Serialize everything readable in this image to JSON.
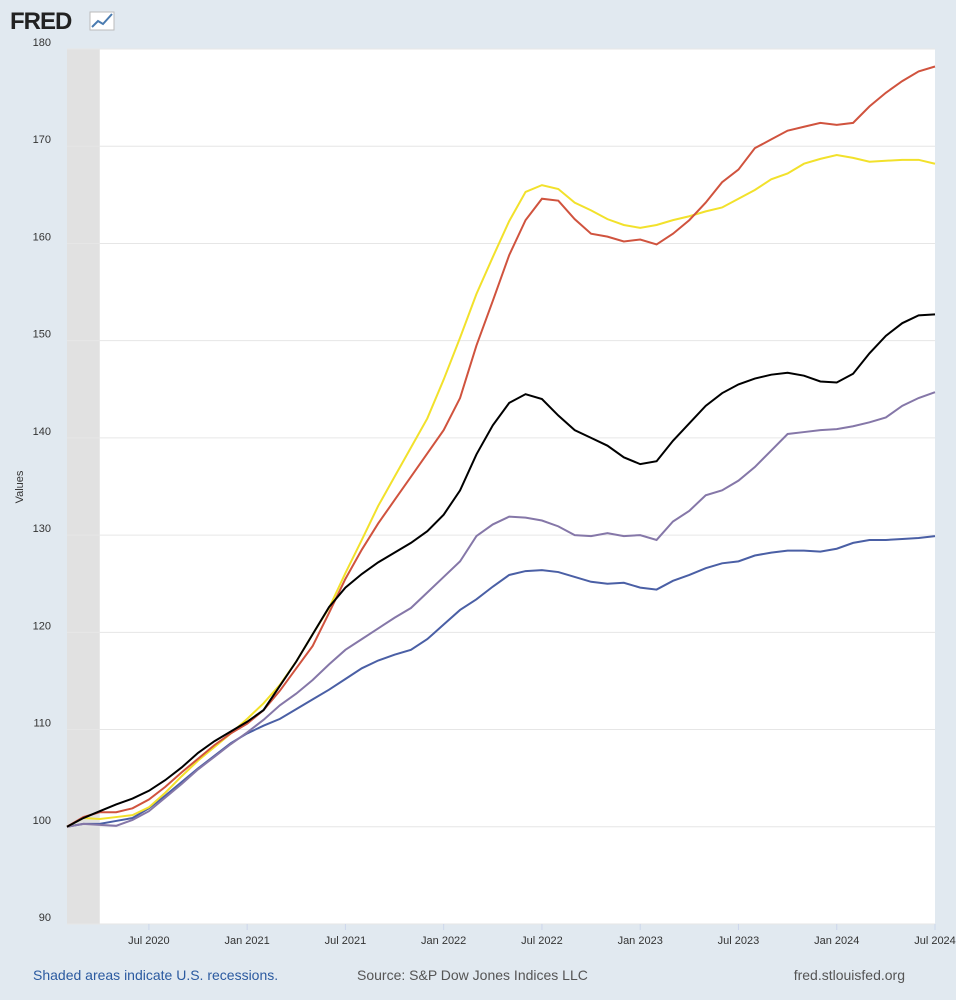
{
  "logo": "FRED",
  "chart_data": {
    "type": "line",
    "ylabel": "Values",
    "x": [
      "2020-02",
      "2020-03",
      "2020-04",
      "2020-05",
      "2020-06",
      "2020-07",
      "2020-08",
      "2020-09",
      "2020-10",
      "2020-11",
      "2020-12",
      "2021-01",
      "2021-02",
      "2021-03",
      "2021-04",
      "2021-05",
      "2021-06",
      "2021-07",
      "2021-08",
      "2021-09",
      "2021-10",
      "2021-11",
      "2021-12",
      "2022-01",
      "2022-02",
      "2022-03",
      "2022-04",
      "2022-05",
      "2022-06",
      "2022-07",
      "2022-08",
      "2022-09",
      "2022-10",
      "2022-11",
      "2022-12",
      "2023-01",
      "2023-02",
      "2023-03",
      "2023-04",
      "2023-05",
      "2023-06",
      "2023-07",
      "2023-08",
      "2023-09",
      "2023-10",
      "2023-11",
      "2023-12",
      "2024-01",
      "2024-02",
      "2024-03",
      "2024-04",
      "2024-05",
      "2024-06",
      "2024-07"
    ],
    "xlim": [
      "2020-02",
      "2024-07"
    ],
    "xticks": [
      {
        "value": "2020-07",
        "label": "Jul 2020"
      },
      {
        "value": "2021-01",
        "label": "Jan 2021"
      },
      {
        "value": "2021-07",
        "label": "Jul 2021"
      },
      {
        "value": "2022-01",
        "label": "Jan 2022"
      },
      {
        "value": "2022-07",
        "label": "Jul 2022"
      },
      {
        "value": "2023-01",
        "label": "Jan 2023"
      },
      {
        "value": "2023-07",
        "label": "Jul 2023"
      },
      {
        "value": "2024-01",
        "label": "Jan 2024"
      },
      {
        "value": "2024-07",
        "label": "Jul 2024"
      }
    ],
    "ylim": [
      90,
      180
    ],
    "yticks": [
      90,
      100,
      110,
      120,
      130,
      140,
      150,
      160,
      170,
      180
    ],
    "grid": true,
    "recessions": [
      [
        "2020-02",
        "2020-04"
      ]
    ],
    "series": [
      {
        "color": "#4a5fa5",
        "values": [
          100,
          100.3,
          100.3,
          100.6,
          100.9,
          101.9,
          103.2,
          104.6,
          106.0,
          107.3,
          108.6,
          109.6,
          110.4,
          111.1,
          112.1,
          113.1,
          114.1,
          115.2,
          116.3,
          117.1,
          117.7,
          118.2,
          119.3,
          120.8,
          122.3,
          123.4,
          124.7,
          125.9,
          126.3,
          126.4,
          126.2,
          125.7,
          125.2,
          125.0,
          125.1,
          124.6,
          124.4,
          125.3,
          125.9,
          126.6,
          127.1,
          127.3,
          127.9,
          128.2,
          128.4,
          128.4,
          128.3,
          128.6,
          129.2,
          129.5,
          129.5,
          129.6,
          129.7,
          129.9
        ]
      },
      {
        "color": "#8577a8",
        "values": [
          100,
          100.3,
          100.2,
          100.1,
          100.7,
          101.6,
          103.0,
          104.4,
          105.9,
          107.2,
          108.5,
          109.7,
          111.0,
          112.5,
          113.7,
          115.1,
          116.7,
          118.2,
          119.3,
          120.4,
          121.5,
          122.5,
          124.1,
          125.7,
          127.3,
          129.9,
          131.1,
          131.9,
          131.8,
          131.5,
          130.9,
          130.0,
          129.9,
          130.2,
          129.9,
          130.0,
          129.5,
          131.4,
          132.5,
          134.1,
          134.6,
          135.6,
          137.0,
          138.7,
          140.4,
          140.6,
          140.8,
          140.9,
          141.2,
          141.6,
          142.1,
          143.3,
          144.1,
          144.7
        ]
      },
      {
        "color": "#f2e12b",
        "values": [
          100,
          100.9,
          100.8,
          101.0,
          101.2,
          102.0,
          103.5,
          105.2,
          106.8,
          108.2,
          109.6,
          111.1,
          112.7,
          114.6,
          117.0,
          119.8,
          122.5,
          126.1,
          129.5,
          133.0,
          136.0,
          139.0,
          142.0,
          146.0,
          150.3,
          154.8,
          158.6,
          162.3,
          165.3,
          166.0,
          165.6,
          164.2,
          163.4,
          162.5,
          161.9,
          161.6,
          161.9,
          162.4,
          162.8,
          163.3,
          163.7,
          164.6,
          165.5,
          166.6,
          167.2,
          168.2,
          168.7,
          169.1,
          168.8,
          168.4,
          168.5,
          168.6,
          168.6,
          168.2
        ]
      },
      {
        "color": "#d0533e",
        "values": [
          100,
          101.0,
          101.5,
          101.5,
          101.9,
          102.8,
          104.1,
          105.6,
          107.0,
          108.4,
          109.6,
          110.6,
          112.0,
          114.0,
          116.3,
          118.6,
          122.0,
          125.5,
          128.5,
          131.2,
          133.6,
          136.0,
          138.4,
          140.8,
          144.1,
          149.5,
          154.1,
          158.8,
          162.4,
          164.6,
          164.4,
          162.5,
          161.0,
          160.7,
          160.2,
          160.4,
          159.9,
          161.0,
          162.4,
          164.2,
          166.3,
          167.6,
          169.8,
          170.7,
          171.6,
          172.0,
          172.4,
          172.2,
          172.4,
          174.1,
          175.5,
          176.7,
          177.7,
          178.2
        ]
      },
      {
        "color": "#000000",
        "values": [
          100,
          100.9,
          101.6,
          102.3,
          102.9,
          103.7,
          104.8,
          106.1,
          107.6,
          108.8,
          109.8,
          110.8,
          112.0,
          114.5,
          117.0,
          119.8,
          122.6,
          124.6,
          126.0,
          127.2,
          128.2,
          129.2,
          130.4,
          132.1,
          134.6,
          138.3,
          141.3,
          143.6,
          144.5,
          144.0,
          142.3,
          140.8,
          140.0,
          139.2,
          138.0,
          137.3,
          137.6,
          139.7,
          141.5,
          143.3,
          144.6,
          145.5,
          146.1,
          146.5,
          146.7,
          146.4,
          145.8,
          145.7,
          146.6,
          148.7,
          150.5,
          151.8,
          152.6,
          152.7
        ]
      }
    ]
  },
  "footer": {
    "recession_note": "Shaded areas indicate U.S. recessions.",
    "source": "Source: S&P Dow Jones Indices LLC",
    "site": "fred.stlouisfed.org"
  }
}
